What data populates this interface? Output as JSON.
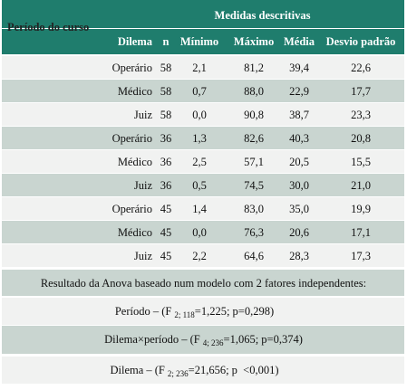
{
  "header": {
    "period": "Período do curso",
    "group": "Medidas descritivas",
    "columns": [
      "Dilema",
      "n",
      "Mínimo",
      "Máximo",
      "Média",
      "Desvio padrão"
    ]
  },
  "table": {
    "rows": [
      [
        "Operário",
        "58",
        "2,1",
        "81,2",
        "39,4",
        "22,6"
      ],
      [
        "Médico",
        "58",
        "0,7",
        "88,0",
        "22,9",
        "17,7"
      ],
      [
        "Juiz",
        "58",
        "0,0",
        "90,8",
        "38,7",
        "23,3"
      ],
      [
        "Operário",
        "36",
        "1,3",
        "82,6",
        "40,3",
        "20,8"
      ],
      [
        "Médico",
        "36",
        "2,5",
        "57,1",
        "20,5",
        "15,5"
      ],
      [
        "Juiz",
        "36",
        "0,5",
        "74,5",
        "30,0",
        "21,0"
      ],
      [
        "Operário",
        "45",
        "1,4",
        "83,0",
        "35,0",
        "19,9"
      ],
      [
        "Médico",
        "45",
        "0,0",
        "76,3",
        "20,6",
        "17,1"
      ],
      [
        "Juiz",
        "45",
        "2,2",
        "64,6",
        "28,3",
        "17,3"
      ]
    ]
  },
  "anova": {
    "title": "Resultado da Anova baseado num modelo com 2 fatores independentes:",
    "results": [
      {
        "prefix": "Período – (F",
        "sub": "2; 118",
        "suffix": "=1,225; p=0,298)"
      },
      {
        "prefix": "Dilema×período – (F",
        "sub": "4; 236",
        "suffix": "=1,065; p=0,374)"
      },
      {
        "prefix": "Dilema – (F",
        "sub": "2; 236",
        "suffix": "=21,656; p  <0,001)"
      }
    ]
  }
}
